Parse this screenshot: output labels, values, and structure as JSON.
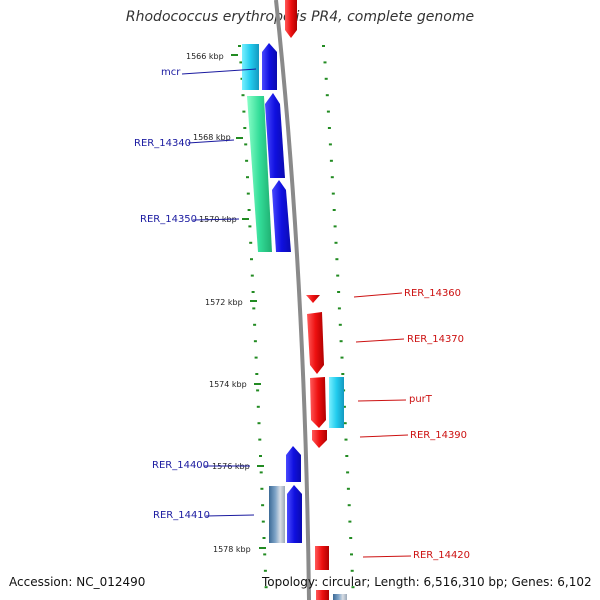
{
  "title": "Rhodococcus erythropolis PR4, complete genome",
  "footer": {
    "accession": "Accession: NC_012490",
    "stats": "Topology: circular; Length: 6,516,310 bp; Genes: 6,102"
  },
  "ticks": [
    {
      "label": "1566 kbp"
    },
    {
      "label": "1568 kbp"
    },
    {
      "label": "1570 kbp"
    },
    {
      "label": "1572 kbp"
    },
    {
      "label": "1574 kbp"
    },
    {
      "label": "1576 kbp"
    },
    {
      "label": "1578 kbp"
    }
  ],
  "genes_left": [
    {
      "label": "mcr"
    },
    {
      "label": "RER_14340"
    },
    {
      "label": "RER_14350"
    },
    {
      "label": "RER_14400"
    },
    {
      "label": "RER_14410"
    }
  ],
  "genes_right": [
    {
      "label": "RER_14360"
    },
    {
      "label": "RER_14370"
    },
    {
      "label": "purT"
    },
    {
      "label": "RER_14390"
    },
    {
      "label": "RER_14420"
    }
  ],
  "colors": {
    "forward_strand": "#1010e0",
    "reverse_strand": "#ee1010",
    "backbone": "#888888",
    "tick_marks": "#228b22",
    "left_label": "#1a1aa0",
    "right_label": "#cc1111",
    "cyan_gene": "#22ccee",
    "green_gene": "#33dd99",
    "steel_gene": "#5f87b0"
  }
}
